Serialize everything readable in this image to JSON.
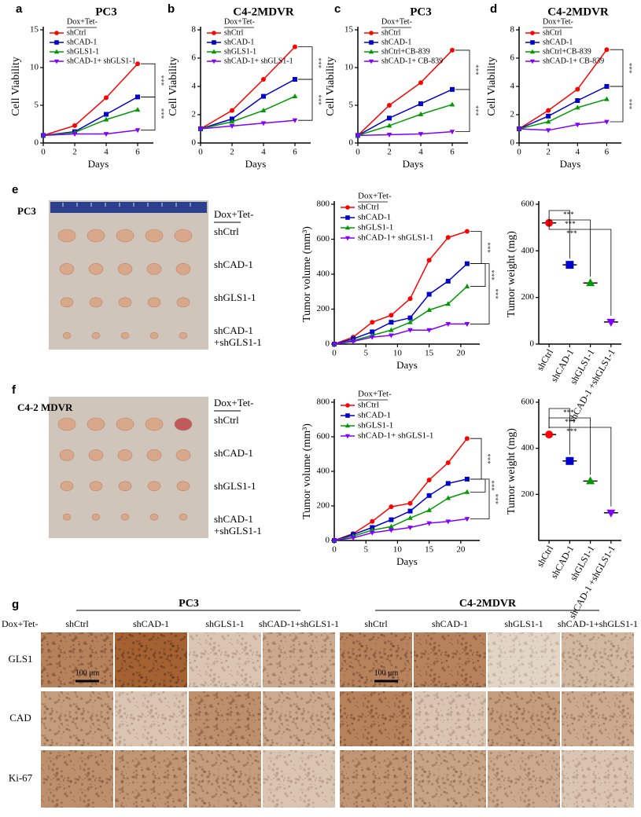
{
  "figure": {
    "panel_labels": [
      "a",
      "b",
      "c",
      "d",
      "e",
      "f",
      "g"
    ]
  },
  "chart_data": [
    {
      "type": "line",
      "title": "PC3",
      "x_label": "Days",
      "y_label": "Cell Viability",
      "x": [
        0,
        2,
        4,
        6
      ],
      "xlim": [
        0,
        7
      ],
      "xticks": [
        0,
        2,
        4,
        6
      ],
      "ylim": [
        0,
        15
      ],
      "yticks": [
        0,
        5,
        10,
        15
      ],
      "legend_title": "Dox+Tet-",
      "legend": "upper left",
      "annotations": [
        "***",
        "***"
      ],
      "series": [
        {
          "name": "shCtrl",
          "color": "#ff0000",
          "marker": "circle",
          "values": [
            1,
            2.3,
            6,
            10.5
          ]
        },
        {
          "name": "shCAD-1",
          "color": "#0000cc",
          "marker": "square",
          "values": [
            1,
            1.5,
            3.8,
            6.1
          ]
        },
        {
          "name": "shGLS1-1",
          "color": "#009900",
          "marker": "triangle-up",
          "values": [
            1,
            1.4,
            3.1,
            4.4
          ]
        },
        {
          "name": "shCAD-1+ shGLS1-1",
          "color": "#8000ff",
          "marker": "triangle-down",
          "values": [
            1,
            1.2,
            1.2,
            1.7
          ]
        }
      ]
    },
    {
      "type": "line",
      "title": "C4-2MDVR",
      "x_label": "Days",
      "y_label": "Cell Viability",
      "x": [
        0,
        2,
        4,
        6
      ],
      "xlim": [
        0,
        7
      ],
      "xticks": [
        0,
        2,
        4,
        6
      ],
      "ylim": [
        0,
        8
      ],
      "yticks": [
        0,
        2,
        4,
        6,
        8
      ],
      "legend_title": "Dox+Tet-",
      "legend": "upper left",
      "annotations": [
        "***",
        "***"
      ],
      "series": [
        {
          "name": "shCtrl",
          "color": "#ff0000",
          "marker": "circle",
          "values": [
            1,
            2.3,
            4.5,
            6.8
          ]
        },
        {
          "name": "shCAD-1",
          "color": "#0000cc",
          "marker": "square",
          "values": [
            1,
            1.7,
            3.3,
            4.5
          ]
        },
        {
          "name": "shGLS1-1",
          "color": "#009900",
          "marker": "triangle-up",
          "values": [
            1,
            1.5,
            2.3,
            3.3
          ]
        },
        {
          "name": "shCAD-1+ shGLS1-1",
          "color": "#8000ff",
          "marker": "triangle-down",
          "values": [
            1,
            1.2,
            1.4,
            1.6
          ]
        }
      ]
    },
    {
      "type": "line",
      "title": "PC3",
      "x_label": "Days",
      "y_label": "Cell Viability",
      "x": [
        0,
        2,
        4,
        6
      ],
      "xlim": [
        0,
        7
      ],
      "xticks": [
        0,
        2,
        4,
        6
      ],
      "ylim": [
        0,
        15
      ],
      "yticks": [
        0,
        5,
        10,
        15
      ],
      "legend_title": "Dox+Tet-",
      "legend": "upper left",
      "annotations": [
        "***",
        "***"
      ],
      "series": [
        {
          "name": "shCtrl",
          "color": "#ff0000",
          "marker": "circle",
          "values": [
            1,
            5,
            8,
            12.3
          ]
        },
        {
          "name": "shCAD-1",
          "color": "#0000cc",
          "marker": "square",
          "values": [
            1,
            3.3,
            5.2,
            7.1
          ]
        },
        {
          "name": "shCtrl+CB-839",
          "color": "#009900",
          "marker": "triangle-up",
          "values": [
            1,
            2.3,
            3.8,
            5.1
          ]
        },
        {
          "name": "shCAD-1+ CB-839",
          "color": "#8000ff",
          "marker": "triangle-down",
          "values": [
            1,
            1.1,
            1.2,
            1.5
          ]
        }
      ]
    },
    {
      "type": "line",
      "title": "C4-2MDVR",
      "x_label": "Days",
      "y_label": "Cell Viability",
      "x": [
        0,
        2,
        4,
        6
      ],
      "xlim": [
        0,
        7
      ],
      "xticks": [
        0,
        2,
        4,
        6
      ],
      "ylim": [
        0,
        8
      ],
      "yticks": [
        0,
        2,
        4,
        6,
        8
      ],
      "legend_title": "Dox+Tet-",
      "legend": "upper left",
      "annotations": [
        "***",
        "***"
      ],
      "series": [
        {
          "name": "shCtrl",
          "color": "#ff0000",
          "marker": "circle",
          "values": [
            1,
            2.3,
            3.8,
            6.6
          ]
        },
        {
          "name": "shCAD-1",
          "color": "#0000cc",
          "marker": "square",
          "values": [
            1,
            1.9,
            3.0,
            4.0
          ]
        },
        {
          "name": "shCtrl+CB-839",
          "color": "#009900",
          "marker": "triangle-up",
          "values": [
            1,
            1.5,
            2.5,
            3.1
          ]
        },
        {
          "name": "shCAD-1+ CB-839",
          "color": "#8000ff",
          "marker": "triangle-down",
          "values": [
            1,
            0.9,
            1.3,
            1.5
          ]
        }
      ]
    },
    {
      "type": "line",
      "x_label": "Days",
      "y_label": "Tumor volume (mm³)",
      "x": [
        0,
        3,
        6,
        9,
        12,
        15,
        18,
        21
      ],
      "xlim": [
        0,
        23
      ],
      "xticks": [
        0,
        5,
        10,
        15,
        20
      ],
      "ylim": [
        0,
        800
      ],
      "yticks": [
        0,
        200,
        400,
        600,
        800
      ],
      "legend_title": "Dox+Tet-",
      "legend": "upper left",
      "annotations": [
        "***",
        "***",
        "***"
      ],
      "series": [
        {
          "name": "shCtrl",
          "color": "#ff0000",
          "marker": "circle",
          "values": [
            0,
            40,
            125,
            165,
            260,
            480,
            610,
            645
          ]
        },
        {
          "name": "shCAD-1",
          "color": "#0000cc",
          "marker": "square",
          "values": [
            0,
            30,
            70,
            125,
            150,
            285,
            360,
            460
          ]
        },
        {
          "name": "shGLS1-1",
          "color": "#009900",
          "marker": "triangle-up",
          "values": [
            0,
            20,
            50,
            80,
            125,
            195,
            230,
            330
          ]
        },
        {
          "name": "shCAD-1+ shGLS1-1",
          "color": "#8000ff",
          "marker": "triangle-down",
          "values": [
            0,
            15,
            40,
            50,
            80,
            80,
            115,
            115
          ]
        }
      ]
    },
    {
      "type": "dot",
      "y_label": "Tumor weight (mg)",
      "categories": [
        "shCtrl",
        "shCAD-1",
        "shGLS1-1",
        "shCAD-1 +shGLS1-1"
      ],
      "values": [
        520,
        340,
        262,
        95
      ],
      "colors": [
        "#ff0000",
        "#0000cc",
        "#009900",
        "#8000ff"
      ],
      "markers": [
        "circle",
        "square",
        "triangle-up",
        "triangle-down"
      ],
      "ylim": [
        0,
        600
      ],
      "yticks": [
        0,
        200,
        400,
        600
      ],
      "annotations": [
        "***",
        "***",
        "***"
      ]
    },
    {
      "type": "line",
      "x_label": "Days",
      "y_label": "Tumor volume (mm³)",
      "x": [
        0,
        3,
        6,
        9,
        12,
        15,
        18,
        21
      ],
      "xlim": [
        0,
        23
      ],
      "xticks": [
        0,
        5,
        10,
        15,
        20
      ],
      "ylim": [
        0,
        800
      ],
      "yticks": [
        0,
        200,
        400,
        600,
        800
      ],
      "legend_title": "Dox+Tet-",
      "legend": "upper left",
      "annotations": [
        "***",
        "***",
        "***"
      ],
      "series": [
        {
          "name": "shCtrl",
          "color": "#ff0000",
          "marker": "circle",
          "values": [
            0,
            40,
            110,
            195,
            215,
            350,
            450,
            590
          ]
        },
        {
          "name": "shCAD-1",
          "color": "#0000cc",
          "marker": "square",
          "values": [
            0,
            35,
            75,
            120,
            170,
            260,
            330,
            355
          ]
        },
        {
          "name": "shGLS1-1",
          "color": "#009900",
          "marker": "triangle-up",
          "values": [
            0,
            25,
            60,
            80,
            130,
            175,
            245,
            280
          ]
        },
        {
          "name": "shCAD-1+ shGLS1-1",
          "color": "#8000ff",
          "marker": "triangle-down",
          "values": [
            0,
            15,
            45,
            60,
            75,
            100,
            110,
            125
          ]
        }
      ]
    },
    {
      "type": "dot",
      "y_label": "Tumor weight (mg)",
      "categories": [
        "shCtrl",
        "shCAD-1",
        "shGLS1-1",
        "shCAD-1 +shGLS1-1"
      ],
      "values": [
        460,
        345,
        258,
        120
      ],
      "colors": [
        "#ff0000",
        "#0000cc",
        "#009900",
        "#8000ff"
      ],
      "markers": [
        "circle",
        "square",
        "triangle-up",
        "triangle-down"
      ],
      "ylim": [
        0,
        600
      ],
      "yticks": [
        200,
        400,
        600
      ],
      "annotations": [
        "***",
        "***",
        "***"
      ]
    }
  ],
  "tumor_photos": [
    {
      "cell_line": "PC3",
      "legend_title": "Dox+Tet-",
      "groups": [
        "shCtrl",
        "shCAD-1",
        "shGLS1-1",
        "shCAD-1 +shGLS1-1"
      ]
    },
    {
      "cell_line": "C4-2 MDVR",
      "legend_title": "Dox+Tet-",
      "groups": [
        "shCtrl",
        "shCAD-1",
        "shGLS1-1",
        "shCAD-1 +shGLS1-1"
      ]
    }
  ],
  "ihc": {
    "treatment": "Dox+Tet-",
    "cell_lines": [
      "PC3",
      "C4-2MDVR"
    ],
    "columns": [
      "shCtrl",
      "shCAD-1",
      "shGLS1-1",
      "shCAD-1+shGLS1-1"
    ],
    "rows": [
      "GLS1",
      "CAD",
      "Ki-67"
    ],
    "scale_bar": "100 μm"
  }
}
